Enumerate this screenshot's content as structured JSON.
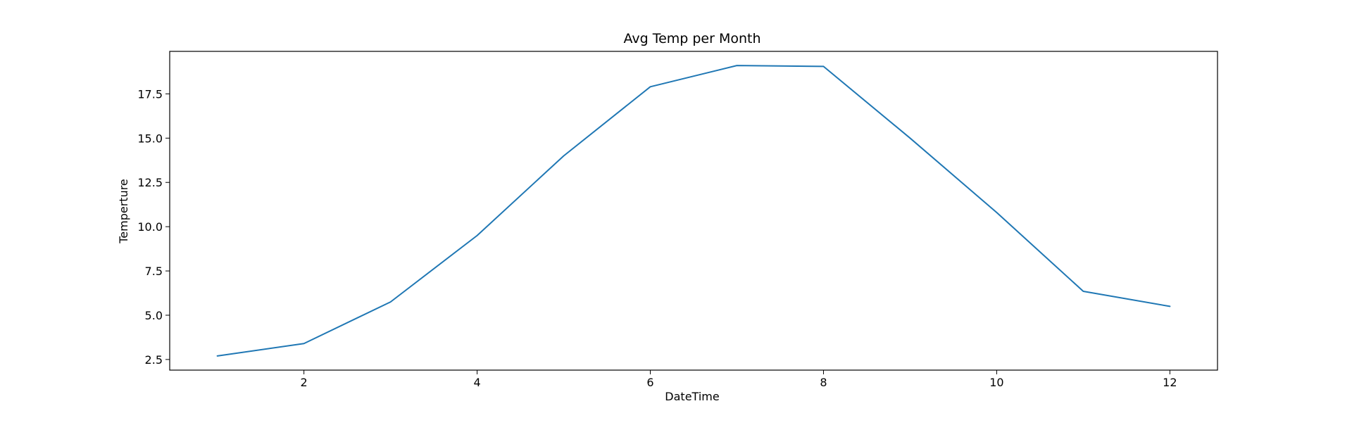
{
  "chart_data": {
    "type": "line",
    "title": "Avg Temp per Month",
    "xlabel": "DateTime",
    "ylabel": "Temperture",
    "x": [
      1,
      2,
      3,
      4,
      5,
      6,
      7,
      8,
      9,
      10,
      11,
      12
    ],
    "series": [
      {
        "values": [
          2.7,
          3.4,
          5.75,
          9.5,
          14.0,
          17.9,
          19.1,
          19.05,
          15.0,
          10.8,
          6.35,
          5.5
        ],
        "color": "#1f77b4"
      }
    ],
    "xlim": [
      0.45,
      12.55
    ],
    "ylim": [
      1.9,
      19.9
    ],
    "xticks": [
      2,
      4,
      6,
      8,
      10,
      12
    ],
    "xtick_labels": [
      "2",
      "4",
      "6",
      "8",
      "10",
      "12"
    ],
    "yticks": [
      2.5,
      5.0,
      7.5,
      10.0,
      12.5,
      15.0,
      17.5
    ],
    "ytick_labels": [
      "2.5",
      "5.0",
      "7.5",
      "10.0",
      "12.5",
      "15.0",
      "17.5"
    ],
    "grid": false,
    "legend": "none"
  }
}
